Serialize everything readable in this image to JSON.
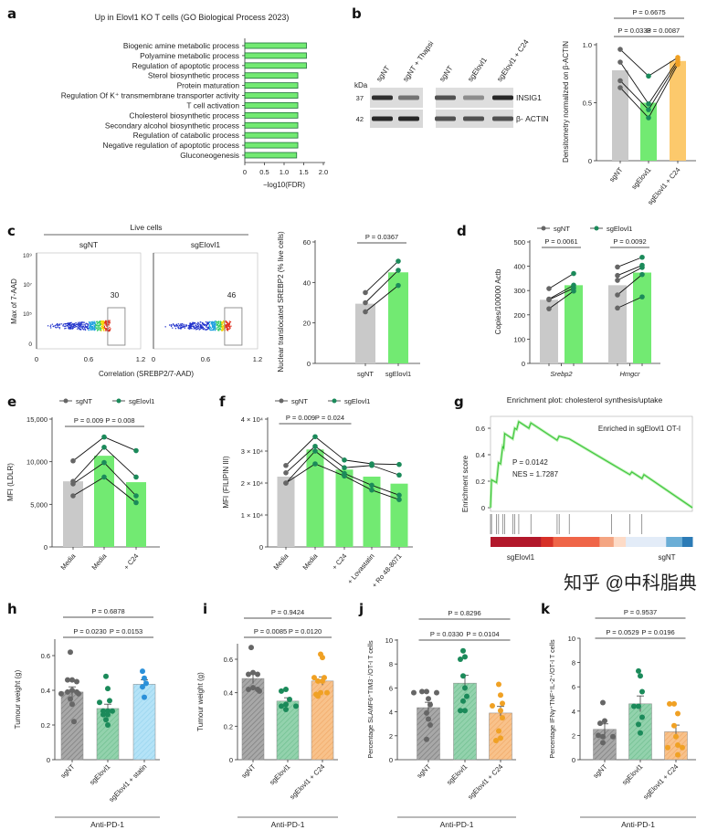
{
  "panel_letters": [
    "a",
    "b",
    "c",
    "d",
    "e",
    "f",
    "g",
    "h",
    "i",
    "j",
    "k"
  ],
  "watermark": "知乎 @中科脂典",
  "colors": {
    "grey_bar": "#c9c9c9",
    "green_bar": "#72ea72",
    "orange_bar": "#fcc96c",
    "grey_dot": "#666666",
    "green_dot": "#1b8a5a",
    "orange_dot": "#f0a124",
    "blue_dot": "#2b90d9",
    "hatch_grey": "#a8a8a8",
    "hatch_green": "#93d2ad",
    "hatch_blue": "#b5e3f7",
    "hatch_orange": "#f8c28b"
  },
  "blot": {
    "kda_label": "kDa",
    "lanes": [
      "sgNT",
      "sgNT + Thapsi",
      "sgNT",
      "sgElovl1",
      "sgElovl1 + C24"
    ],
    "rows": [
      {
        "kda": "37",
        "protein": "INSIG1",
        "intensity": [
          0.9,
          0.5,
          0.7,
          0.35,
          0.95
        ]
      },
      {
        "kda": "42",
        "protein": "β- ACTIN",
        "intensity": [
          0.95,
          0.95,
          0.7,
          0.7,
          0.7
        ]
      }
    ]
  },
  "flow": {
    "header": "Live cells",
    "plots": [
      {
        "title": "sgNT",
        "gate_value": "30"
      },
      {
        "title": "sgElovl1",
        "gate_value": "46"
      }
    ],
    "ylabel": "Max of 7-AAD",
    "xlabel": "Correlation (SREBP2/7-AAD)",
    "yticks": [
      "0",
      "10⁵",
      "10⁷",
      "10⁹"
    ],
    "xticks": [
      "0",
      "0.6",
      "1.2"
    ]
  },
  "chart_data": [
    {
      "panel": "a",
      "type": "bar",
      "orientation": "horizontal",
      "title": "Up in Elovl1 KO T cells (GO Biological Process 2023)",
      "categories": [
        "Biogenic amine metabolic process",
        "Polyamine metabolic process",
        "Regulation of apoptotic process",
        "Sterol biosynthetic process",
        "Protein maturation",
        "Regulation Of K⁺ transmembrane transporter activity",
        "T cell activation",
        "Cholesterol biosynthetic process",
        "Secondary alcohol biosynthetic process",
        "Regulation of catabolic process",
        "Negative regulation of apoptotic process",
        "Gluconeogenesis"
      ],
      "values": [
        1.57,
        1.57,
        1.57,
        1.35,
        1.35,
        1.35,
        1.35,
        1.35,
        1.35,
        1.35,
        1.35,
        1.32
      ],
      "xlabel": "−log10(FDR)",
      "xlim": [
        0,
        2
      ],
      "xticks": [
        0,
        0.5,
        1,
        1.5,
        2
      ],
      "xticklabels": [
        "0",
        "0.5",
        "1.0",
        "1.5",
        "2.0"
      ]
    },
    {
      "panel": "b",
      "type": "bar",
      "ylabel": "Densitometry normalized on β-ACTIN",
      "ylim": [
        0,
        1
      ],
      "yticks": [
        0,
        0.5,
        1
      ],
      "yticklabels": [
        "0",
        "0.5",
        "1.0"
      ],
      "paired": true,
      "groups": [
        {
          "label": "sgNT",
          "bar": 0.78,
          "points": [
            0.96,
            0.85,
            0.69,
            0.63
          ],
          "fill": "grey_bar",
          "dot": "grey_dot"
        },
        {
          "label": "sgElovl1",
          "bar": 0.5,
          "points": [
            0.73,
            0.49,
            0.44,
            0.37
          ],
          "fill": "green_bar",
          "dot": "green_dot"
        },
        {
          "label": "sgElovl1 + C24",
          "bar": 0.86,
          "points": [
            0.89,
            0.87,
            0.85,
            0.83
          ],
          "fill": "orange_bar",
          "dot": "orange_dot"
        }
      ],
      "brackets": [
        {
          "label": "P = 0.0333",
          "from": 0,
          "to": 1,
          "level": 0
        },
        {
          "label": "P = 0.0087",
          "from": 1,
          "to": 2,
          "level": 0
        },
        {
          "label": "P = 0.6675",
          "from": 0,
          "to": 2,
          "level": 1
        }
      ]
    },
    {
      "panel": "c",
      "type": "bar",
      "ylabel": "Nuclear translocated SREBP2 (% live cells)",
      "ylim": [
        0,
        60
      ],
      "yticks": [
        0,
        20,
        40,
        60
      ],
      "yticklabels": [
        "0",
        "20",
        "40",
        "60"
      ],
      "paired": true,
      "groups": [
        {
          "label": "sgNT",
          "bar": 29.5,
          "points": [
            35,
            30,
            25.5
          ],
          "fill": "grey_bar",
          "dot": "grey_dot"
        },
        {
          "label": "sgElovl1",
          "bar": 45,
          "points": [
            50.5,
            46,
            38.5
          ],
          "fill": "green_bar",
          "dot": "green_dot"
        }
      ],
      "brackets": [
        {
          "label": "P = 0.0367",
          "from": 0,
          "to": 1,
          "level": 0
        }
      ]
    },
    {
      "panel": "d",
      "type": "bar",
      "ylabel": "Copies/100000 Actb",
      "ylim": [
        0,
        500
      ],
      "yticks": [
        0,
        100,
        200,
        300,
        400,
        500
      ],
      "yticklabels": [
        "0",
        "100",
        "200",
        "300",
        "400",
        "500"
      ],
      "legend": [
        {
          "label": "sgNT",
          "dot": "grey_dot"
        },
        {
          "label": "sgElovl1",
          "dot": "green_dot"
        }
      ],
      "categories": [
        "Srebp2",
        "Hmgcr"
      ],
      "pairs": [
        [
          0,
          1
        ],
        [
          2,
          3
        ]
      ],
      "groups": [
        {
          "category": 0,
          "bar": 262,
          "points": [
            308,
            265,
            262,
            225
          ],
          "fill": "grey_bar",
          "dot": "grey_dot"
        },
        {
          "category": 0,
          "bar": 322,
          "points": [
            370,
            322,
            310,
            298
          ],
          "fill": "green_bar",
          "dot": "green_dot"
        },
        {
          "category": 1,
          "bar": 322,
          "points": [
            397,
            362,
            342,
            282,
            228
          ],
          "fill": "grey_bar",
          "dot": "grey_dot"
        },
        {
          "category": 1,
          "bar": 374,
          "points": [
            437,
            404,
            395,
            366,
            274
          ],
          "fill": "green_bar",
          "dot": "green_dot"
        }
      ],
      "brackets": [
        {
          "label": "P = 0.0061",
          "from": 0,
          "to": 1,
          "level": 0
        },
        {
          "label": "P = 0.0092",
          "from": 2,
          "to": 3,
          "level": 0
        }
      ]
    },
    {
      "panel": "e",
      "type": "bar",
      "ylabel": "MFI (LDLR)",
      "ylim": [
        0,
        15000
      ],
      "yticks": [
        0,
        5000,
        10000,
        15000
      ],
      "yticklabels": [
        "0",
        "5,000",
        "10,000",
        "15,000"
      ],
      "paired": true,
      "legend": [
        {
          "label": "sgNT",
          "dot": "grey_dot"
        },
        {
          "label": "sgElovl1",
          "dot": "green_dot"
        }
      ],
      "groups": [
        {
          "label": "Media",
          "bar": 7700,
          "points": [
            10100,
            7700,
            7400,
            6000
          ],
          "fill": "grey_bar",
          "dot": "grey_dot"
        },
        {
          "label": "Media",
          "bar": 10700,
          "points": [
            12900,
            11700,
            9900,
            8200
          ],
          "fill": "green_bar",
          "dot": "green_dot"
        },
        {
          "label": "+ C24",
          "bar": 7600,
          "points": [
            11300,
            8200,
            6000,
            5200
          ],
          "fill": "green_bar",
          "dot": "green_dot"
        }
      ],
      "brackets": [
        {
          "label": "P = 0.009",
          "from": 0,
          "to": 1,
          "level": 0
        },
        {
          "label": "P = 0.008",
          "from": 1,
          "to": 2,
          "level": 0
        }
      ]
    },
    {
      "panel": "f",
      "type": "bar",
      "ylabel": "MFI (FILIPIN III)",
      "ylim": [
        0,
        40000
      ],
      "yticks": [
        0,
        10000,
        20000,
        30000,
        40000
      ],
      "yticklabels": [
        "0",
        "1 × 10⁴",
        "2 × 10⁴",
        "3 × 10⁴",
        "4 × 10⁴"
      ],
      "paired": true,
      "legend": [
        {
          "label": "sgNT",
          "dot": "grey_dot"
        },
        {
          "label": "sgElovl1",
          "dot": "green_dot"
        }
      ],
      "groups": [
        {
          "label": "Media",
          "bar": 22000,
          "points": [
            25500,
            23200,
            20000,
            20000
          ],
          "fill": "grey_bar",
          "dot": "grey_dot"
        },
        {
          "label": "Media",
          "bar": 30500,
          "points": [
            34500,
            31500,
            30000,
            26000
          ],
          "fill": "green_bar",
          "dot": "green_dot"
        },
        {
          "label": "+ C24",
          "bar": 24200,
          "points": [
            27200,
            24800,
            23000,
            22200
          ],
          "fill": "green_bar",
          "dot": "green_dot"
        },
        {
          "label": "+ Lovastatin",
          "bar": 22000,
          "points": [
            26000,
            25500,
            19300,
            17800
          ],
          "fill": "green_bar",
          "dot": "green_dot"
        },
        {
          "label": "+ Ro 48-8071",
          "bar": 19800,
          "points": [
            25800,
            22500,
            16200,
            14800
          ],
          "fill": "green_bar",
          "dot": "green_dot"
        }
      ],
      "brackets": [
        {
          "label": "P = 0.009",
          "from": 0,
          "to": 1,
          "level": 0
        },
        {
          "label": "P = 0.024",
          "from": 1,
          "to": 2,
          "level": 0
        }
      ]
    },
    {
      "panel": "g",
      "type": "line",
      "title": "Enrichment plot: cholesterol synthesis/uptake",
      "ylabel": "Enrichment score",
      "ylim": [
        0,
        0.65
      ],
      "yticks": [
        0,
        0.2,
        0.4,
        0.6
      ],
      "yticklabels": [
        "0",
        "0.2",
        "0.4",
        "0.6"
      ],
      "annotation": "Enriched in sgElovl1 OT-I",
      "stats": [
        "P = 0.0142",
        "NES = 1.7287"
      ],
      "curve_rank": [
        0,
        0.005,
        0.03,
        0.04,
        0.05,
        0.06,
        0.065,
        0.07,
        0.11,
        0.12,
        0.13,
        0.14,
        0.19,
        0.2,
        0.33,
        0.34,
        0.39,
        0.6,
        0.69,
        0.7,
        0.75,
        0.76,
        1.0
      ],
      "curve_es": [
        0,
        0.21,
        0.19,
        0.34,
        0.33,
        0.46,
        0.45,
        0.56,
        0.52,
        0.6,
        0.59,
        0.65,
        0.6,
        0.64,
        0.51,
        0.54,
        0.52,
        0.33,
        0.25,
        0.27,
        0.22,
        0.25,
        0
      ],
      "hits": [
        0,
        0.005,
        0.03,
        0.04,
        0.06,
        0.07,
        0.11,
        0.12,
        0.14,
        0.2,
        0.33,
        0.34,
        0.39,
        0.6,
        0.69,
        0.75
      ],
      "rank_colors": [
        [
          0,
          0.25,
          "#b2182b"
        ],
        [
          0.25,
          0.31,
          "#d73027"
        ],
        [
          0.31,
          0.54,
          "#ef6548"
        ],
        [
          0.54,
          0.61,
          "#f4a582"
        ],
        [
          0.61,
          0.67,
          "#fddbc7"
        ],
        [
          0.67,
          0.87,
          "#e3ecf8"
        ],
        [
          0.87,
          0.95,
          "#6baed6"
        ],
        [
          0.95,
          1,
          "#2c7bb6"
        ]
      ],
      "rank_labels": [
        "sgElovl1",
        "sgNT"
      ]
    },
    {
      "panel": "h",
      "type": "bar",
      "ylabel": "Tumour weight (g)",
      "ylim": [
        0,
        0.6
      ],
      "yticks": [
        0,
        0.2,
        0.4,
        0.6
      ],
      "yticklabels": [
        "0",
        "0.2",
        "0.4",
        "0.6"
      ],
      "group_label": "Anti-PD-1",
      "groups": [
        {
          "label": "sgNT",
          "bar": 0.39,
          "sem": 0.03,
          "points": [
            0.62,
            0.46,
            0.46,
            0.45,
            0.4,
            0.39,
            0.39,
            0.38,
            0.38,
            0.35,
            0.32,
            0.22
          ],
          "fill": "hatch_grey",
          "dot": "grey_dot"
        },
        {
          "label": "sgElovl1",
          "bar": 0.295,
          "sem": 0.025,
          "points": [
            0.48,
            0.41,
            0.34,
            0.33,
            0.28,
            0.28,
            0.28,
            0.26,
            0.26,
            0.23,
            0.2
          ],
          "fill": "hatch_green",
          "dot": "green_dot"
        },
        {
          "label": "sgElovl1 + statin",
          "bar": 0.435,
          "sem": 0.025,
          "points": [
            0.51,
            0.47,
            0.44,
            0.42,
            0.36
          ],
          "fill": "hatch_blue",
          "dot": "blue_dot"
        }
      ],
      "brackets": [
        {
          "label": "P = 0.0230",
          "from": 0,
          "to": 1,
          "level": 0
        },
        {
          "label": "P = 0.0153",
          "from": 1,
          "to": 2,
          "level": 0
        },
        {
          "label": "P = 0.6878",
          "from": 0,
          "to": 2,
          "level": 1
        }
      ]
    },
    {
      "panel": "i",
      "type": "bar",
      "ylabel": "Tumour weight (g)",
      "ylim": [
        0,
        0.6
      ],
      "yticks": [
        0,
        0.2,
        0.4,
        0.6
      ],
      "yticklabels": [
        "0",
        "0.2",
        "0.4",
        "0.6"
      ],
      "group_label": "Anti-PD-1",
      "groups": [
        {
          "label": "sgNT",
          "bar": 0.485,
          "sem": 0.03,
          "points": [
            0.67,
            0.52,
            0.51,
            0.51,
            0.43,
            0.42,
            0.42,
            0.41
          ],
          "fill": "hatch_grey",
          "dot": "grey_dot"
        },
        {
          "label": "sgElovl1",
          "bar": 0.35,
          "sem": 0.02,
          "points": [
            0.42,
            0.41,
            0.36,
            0.33,
            0.32,
            0.32,
            0.3
          ],
          "fill": "hatch_green",
          "dot": "green_dot"
        },
        {
          "label": "sgElovl1 + C24",
          "bar": 0.47,
          "sem": 0.025,
          "points": [
            0.63,
            0.61,
            0.49,
            0.49,
            0.47,
            0.47,
            0.4,
            0.39,
            0.38,
            0.4
          ],
          "fill": "hatch_orange",
          "dot": "orange_dot"
        }
      ],
      "brackets": [
        {
          "label": "P = 0.0085",
          "from": 0,
          "to": 1,
          "level": 0
        },
        {
          "label": "P = 0.0120",
          "from": 1,
          "to": 2,
          "level": 0
        },
        {
          "label": "P = 0.9424",
          "from": 0,
          "to": 2,
          "level": 1
        }
      ]
    },
    {
      "panel": "j",
      "type": "bar",
      "ylabel": "Percentage SLAMF6⁺TIM3⁻/OT-I T cells",
      "ylim": [
        0,
        10
      ],
      "yticks": [
        0,
        2,
        4,
        6,
        8,
        10
      ],
      "yticklabels": [
        "0",
        "2",
        "4",
        "6",
        "8",
        "10"
      ],
      "group_label": "Anti-PD-1",
      "groups": [
        {
          "label": "sgNT",
          "bar": 4.35,
          "sem": 0.45,
          "points": [
            5.7,
            5.7,
            5.6,
            5.6,
            5.1,
            4.6,
            3.9,
            3.4,
            2.9,
            1.7
          ],
          "fill": "hatch_grey",
          "dot": "grey_dot"
        },
        {
          "label": "sgElovl1",
          "bar": 6.4,
          "sem": 0.65,
          "points": [
            9.1,
            8.6,
            8.4,
            7.0,
            6.0,
            5.3,
            4.9,
            4.1,
            4.1
          ],
          "fill": "hatch_green",
          "dot": "green_dot"
        },
        {
          "label": "sgElovl1 + C24",
          "bar": 3.9,
          "sem": 0.55,
          "points": [
            6.3,
            5.4,
            4.7,
            4.5,
            4.1,
            3.5,
            2.4,
            1.8,
            1.6
          ],
          "fill": "hatch_orange",
          "dot": "orange_dot"
        }
      ],
      "brackets": [
        {
          "label": "P = 0.0330",
          "from": 0,
          "to": 1,
          "level": 0
        },
        {
          "label": "P = 0.0104",
          "from": 1,
          "to": 2,
          "level": 0
        },
        {
          "label": "P = 0.8296",
          "from": 0,
          "to": 2,
          "level": 1
        }
      ]
    },
    {
      "panel": "k",
      "type": "bar",
      "ylabel": "Percentage IFNγ⁺TNF⁺IL-2⁺/OT-I T cells",
      "ylim": [
        0,
        10
      ],
      "yticks": [
        0,
        2,
        4,
        6,
        8,
        10
      ],
      "yticklabels": [
        "0",
        "2",
        "4",
        "6",
        "8",
        "10"
      ],
      "group_label": "Anti-PD-1",
      "groups": [
        {
          "label": "sgNT",
          "bar": 2.5,
          "sem": 0.45,
          "points": [
            4.7,
            3.2,
            3.0,
            1.9,
            2.0,
            1.9,
            1.4
          ],
          "fill": "hatch_grey",
          "dot": "grey_dot"
        },
        {
          "label": "sgElovl1",
          "bar": 4.6,
          "sem": 0.65,
          "points": [
            7.3,
            6.9,
            5.6,
            4.4,
            4.4,
            3.5,
            2.9,
            2.2
          ],
          "fill": "hatch_green",
          "dot": "green_dot"
        },
        {
          "label": "sgElovl1 + C24",
          "bar": 2.3,
          "sem": 0.55,
          "points": [
            4.6,
            4.6,
            3.8,
            2.8,
            1.9,
            1.2,
            1.0,
            1.0,
            0.4
          ],
          "fill": "hatch_orange",
          "dot": "orange_dot"
        }
      ],
      "brackets": [
        {
          "label": "P = 0.0529",
          "from": 0,
          "to": 1,
          "level": 0
        },
        {
          "label": "P = 0.0196",
          "from": 1,
          "to": 2,
          "level": 0
        },
        {
          "label": "P = 0.9537",
          "from": 0,
          "to": 2,
          "level": 1
        }
      ]
    }
  ]
}
